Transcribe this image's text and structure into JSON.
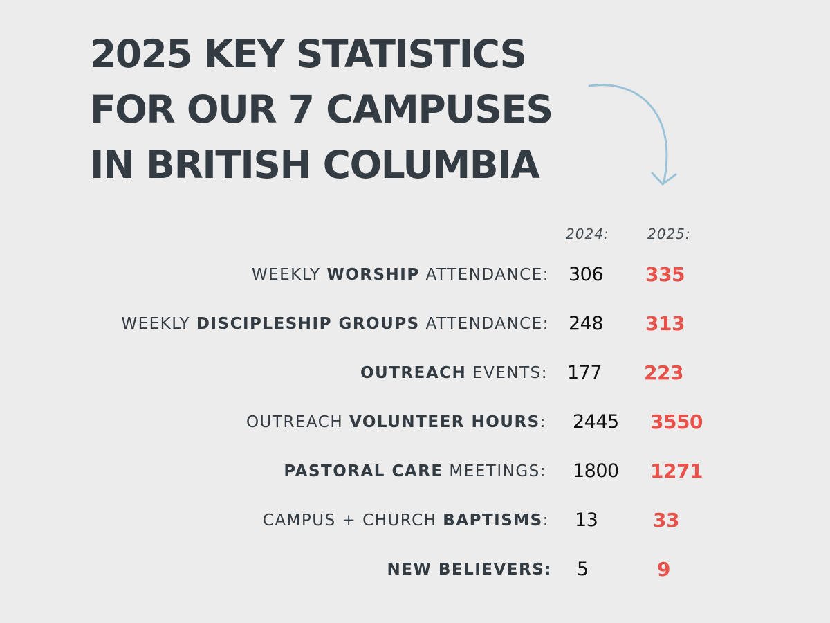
{
  "title": {
    "line1": "2025 KEY STATISTICS",
    "line2": "FOR OUR 7 CAMPUSES",
    "line3": "IN BRITISH COLUMBIA"
  },
  "columns": {
    "y2024": "2024:",
    "y2025": "2025:"
  },
  "accent_color": "#e8524a",
  "arrow_color": "#9bc3d8",
  "rows": [
    {
      "pre": "WEEKLY ",
      "bold": "WORSHIP",
      "post": " ATTENDANCE:",
      "v2024": "306",
      "v2025": "335"
    },
    {
      "pre": "WEEKLY ",
      "bold": "DISCIPLESHIP GROUPS",
      "post": " ATTENDANCE:",
      "v2024": "248",
      "v2025": "313"
    },
    {
      "pre": "",
      "bold": "OUTREACH",
      "post": " EVENTS:",
      "v2024": "177",
      "v2025": "223"
    },
    {
      "pre": "OUTREACH ",
      "bold": "VOLUNTEER HOURS",
      "post": ":",
      "v2024": "2445",
      "v2025": "3550"
    },
    {
      "pre": "",
      "bold": "PASTORAL CARE",
      "post": " MEETINGS:",
      "v2024": "1800",
      "v2025": "1271"
    },
    {
      "pre": "CAMPUS + CHURCH ",
      "bold": "BAPTISMS",
      "post": ":",
      "v2024": "13",
      "v2025": "33"
    },
    {
      "pre": "",
      "bold": "NEW BELIEVERS:",
      "post": "",
      "v2024": "5",
      "v2025": "9"
    }
  ]
}
